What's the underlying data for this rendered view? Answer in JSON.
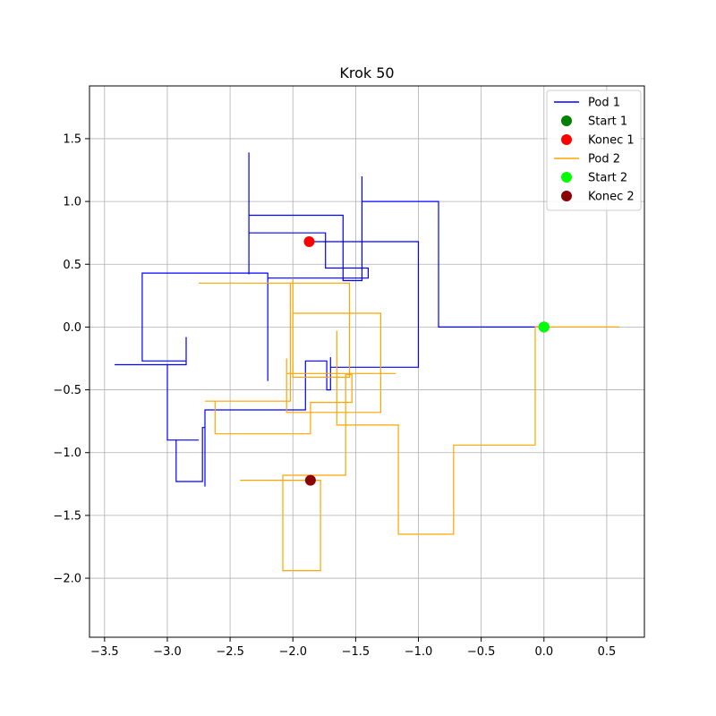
{
  "chart_data": {
    "type": "line",
    "title": "Krok 50",
    "xlabel": "",
    "ylabel": "",
    "xlim": [
      -3.62,
      0.8
    ],
    "ylim": [
      -2.47,
      1.92
    ],
    "xticks": [
      -3.5,
      -3.0,
      -2.5,
      -2.0,
      -1.5,
      -1.0,
      -0.5,
      0.0,
      0.5
    ],
    "yticks": [
      -2.0,
      -1.5,
      -1.0,
      -0.5,
      0.0,
      0.5,
      1.0,
      1.5
    ],
    "grid": true,
    "legend_position": "top-right",
    "series": [
      {
        "name": "Pod 1",
        "kind": "line",
        "color": "#0000ff",
        "points": [
          [
            0.0,
            0.0
          ],
          [
            -0.84,
            0.0
          ],
          [
            -0.84,
            0.25
          ],
          [
            -0.84,
            1.0
          ],
          [
            -1.45,
            1.0
          ],
          [
            -1.45,
            1.2
          ],
          [
            -1.45,
            0.37
          ],
          [
            -1.6,
            0.37
          ],
          [
            -1.6,
            0.89
          ],
          [
            -2.35,
            0.89
          ],
          [
            -2.35,
            1.39
          ],
          [
            -2.35,
            0.42
          ],
          [
            -2.35,
            0.75
          ],
          [
            -1.74,
            0.75
          ],
          [
            -1.74,
            0.47
          ],
          [
            -1.4,
            0.47
          ],
          [
            -1.4,
            0.39
          ],
          [
            -2.2,
            0.39
          ],
          [
            -2.2,
            -0.43
          ],
          [
            -2.2,
            0.43
          ],
          [
            -3.2,
            0.43
          ],
          [
            -3.2,
            0.06
          ],
          [
            -3.2,
            -0.27
          ],
          [
            -2.85,
            -0.27
          ],
          [
            -2.85,
            -0.08
          ],
          [
            -2.85,
            -0.3
          ],
          [
            -3.42,
            -0.3
          ],
          [
            -3.0,
            -0.3
          ],
          [
            -3.0,
            -0.9
          ],
          [
            -2.75,
            -0.9
          ],
          [
            -2.93,
            -0.9
          ],
          [
            -2.93,
            -1.23
          ],
          [
            -2.72,
            -1.23
          ],
          [
            -2.72,
            -0.8
          ],
          [
            -2.7,
            -0.8
          ],
          [
            -2.7,
            -1.27
          ],
          [
            -2.7,
            -0.66
          ],
          [
            -1.9,
            -0.66
          ],
          [
            -1.9,
            -0.27
          ],
          [
            -1.73,
            -0.27
          ],
          [
            -1.73,
            -0.5
          ],
          [
            -1.7,
            -0.5
          ],
          [
            -1.7,
            -0.24
          ],
          [
            -1.7,
            -0.32
          ],
          [
            -1.0,
            -0.32
          ],
          [
            -1.0,
            0.68
          ],
          [
            -1.87,
            0.68
          ]
        ]
      },
      {
        "name": "Start 1",
        "kind": "marker",
        "color": "#008000",
        "points": [
          [
            0.0,
            0.0
          ]
        ]
      },
      {
        "name": "Konec 1",
        "kind": "marker",
        "color": "#ff0000",
        "points": [
          [
            -1.87,
            0.68
          ]
        ]
      },
      {
        "name": "Pod 2",
        "kind": "line",
        "color": "#ffa500",
        "points": [
          [
            0.6,
            0.0
          ],
          [
            0.0,
            0.0
          ],
          [
            -0.07,
            0.0
          ],
          [
            -0.07,
            -0.94
          ],
          [
            -0.58,
            -0.94
          ],
          [
            -0.72,
            -0.94
          ],
          [
            -0.72,
            -1.65
          ],
          [
            -1.16,
            -1.65
          ],
          [
            -1.16,
            -0.78
          ],
          [
            -1.65,
            -0.78
          ],
          [
            -1.65,
            -0.03
          ],
          [
            -1.65,
            -0.37
          ],
          [
            -1.18,
            -0.37
          ],
          [
            -2.05,
            -0.37
          ],
          [
            -2.05,
            -0.25
          ],
          [
            -2.05,
            -0.68
          ],
          [
            -1.3,
            -0.68
          ],
          [
            -1.3,
            0.11
          ],
          [
            -2.0,
            0.11
          ],
          [
            -2.0,
            0.39
          ],
          [
            -2.0,
            -0.4
          ],
          [
            -1.55,
            -0.4
          ],
          [
            -1.55,
            -0.35
          ],
          [
            -1.55,
            0.35
          ],
          [
            -2.75,
            0.35
          ],
          [
            -2.02,
            0.35
          ],
          [
            -2.02,
            -0.59
          ],
          [
            -2.7,
            -0.59
          ],
          [
            -2.62,
            -0.59
          ],
          [
            -2.62,
            -0.85
          ],
          [
            -1.86,
            -0.85
          ],
          [
            -1.86,
            -0.6
          ],
          [
            -1.53,
            -0.6
          ],
          [
            -1.53,
            -0.48
          ],
          [
            -1.53,
            -0.38
          ],
          [
            -1.58,
            -0.38
          ],
          [
            -1.58,
            -1.18
          ],
          [
            -2.08,
            -1.18
          ],
          [
            -2.08,
            -1.94
          ],
          [
            -1.78,
            -1.94
          ],
          [
            -1.78,
            -1.22
          ],
          [
            -2.42,
            -1.22
          ],
          [
            -1.86,
            -1.22
          ]
        ]
      },
      {
        "name": "Start 2",
        "kind": "marker",
        "color": "#00ff00",
        "points": [
          [
            0.0,
            0.0
          ]
        ]
      },
      {
        "name": "Konec 2",
        "kind": "marker",
        "color": "#8b0000",
        "points": [
          [
            -1.86,
            -1.22
          ]
        ]
      }
    ]
  }
}
